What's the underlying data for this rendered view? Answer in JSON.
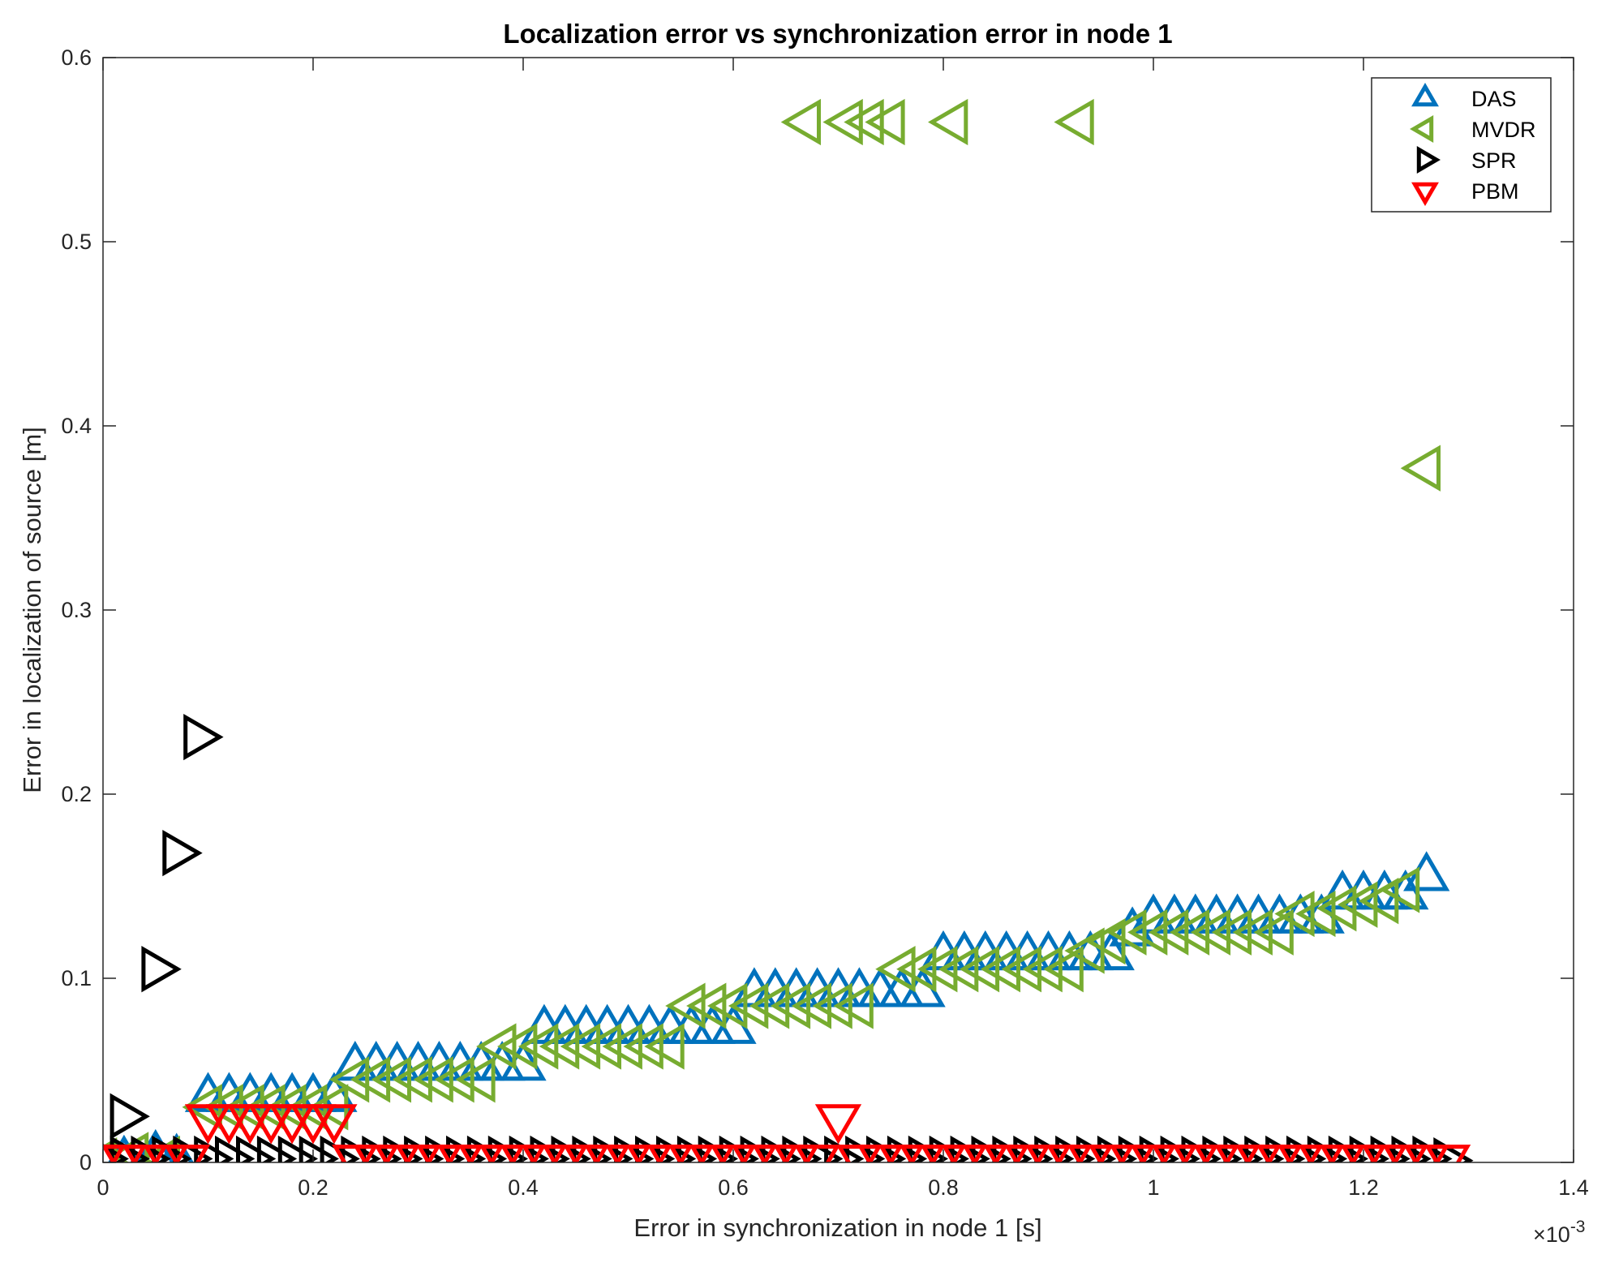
{
  "chart_data": {
    "type": "scatter",
    "title": "Localization error vs synchronization error in node 1",
    "xlabel": "Error in synchronization in node 1 [s]",
    "ylabel": "Error in localization of source [m]",
    "x_exponent_label": "×10",
    "x_exponent_power": "-3",
    "xlim": [
      0,
      1.4
    ],
    "ylim": [
      0,
      0.6
    ],
    "xticks": [
      0,
      0.2,
      0.4,
      0.6,
      0.8,
      1,
      1.2,
      1.4
    ],
    "xtick_labels": [
      "0",
      "0.2",
      "0.4",
      "0.6",
      "0.8",
      "1",
      "1.2",
      "1.4"
    ],
    "yticks": [
      0,
      0.1,
      0.2,
      0.3,
      0.4,
      0.5,
      0.6
    ],
    "ytick_labels": [
      "0",
      "0.1",
      "0.2",
      "0.3",
      "0.4",
      "0.5",
      "0.6"
    ],
    "grid": false,
    "legend_position": "top-right",
    "marker_size": 27,
    "series": [
      {
        "name": "DAS",
        "marker": "triangle-up",
        "color": "#0072BD",
        "points": [
          [
            0.02,
            0.001
          ],
          [
            0.05,
            0.004
          ],
          [
            0.07,
            0.002
          ],
          [
            0.1,
            0.035
          ],
          [
            0.12,
            0.035
          ],
          [
            0.14,
            0.035
          ],
          [
            0.16,
            0.035
          ],
          [
            0.18,
            0.035
          ],
          [
            0.2,
            0.035
          ],
          [
            0.22,
            0.035
          ],
          [
            0.24,
            0.052
          ],
          [
            0.26,
            0.052
          ],
          [
            0.28,
            0.052
          ],
          [
            0.3,
            0.052
          ],
          [
            0.32,
            0.052
          ],
          [
            0.34,
            0.052
          ],
          [
            0.36,
            0.052
          ],
          [
            0.38,
            0.052
          ],
          [
            0.4,
            0.052
          ],
          [
            0.42,
            0.072
          ],
          [
            0.44,
            0.072
          ],
          [
            0.46,
            0.072
          ],
          [
            0.48,
            0.072
          ],
          [
            0.5,
            0.072
          ],
          [
            0.52,
            0.072
          ],
          [
            0.54,
            0.072
          ],
          [
            0.56,
            0.072
          ],
          [
            0.58,
            0.072
          ],
          [
            0.6,
            0.072
          ],
          [
            0.62,
            0.092
          ],
          [
            0.64,
            0.092
          ],
          [
            0.66,
            0.092
          ],
          [
            0.68,
            0.092
          ],
          [
            0.7,
            0.092
          ],
          [
            0.72,
            0.092
          ],
          [
            0.74,
            0.092
          ],
          [
            0.76,
            0.092
          ],
          [
            0.78,
            0.092
          ],
          [
            0.8,
            0.112
          ],
          [
            0.82,
            0.112
          ],
          [
            0.84,
            0.112
          ],
          [
            0.86,
            0.112
          ],
          [
            0.88,
            0.112
          ],
          [
            0.9,
            0.112
          ],
          [
            0.92,
            0.112
          ],
          [
            0.94,
            0.112
          ],
          [
            0.96,
            0.112
          ],
          [
            0.98,
            0.125
          ],
          [
            1.0,
            0.132
          ],
          [
            1.02,
            0.132
          ],
          [
            1.04,
            0.132
          ],
          [
            1.06,
            0.132
          ],
          [
            1.08,
            0.132
          ],
          [
            1.1,
            0.132
          ],
          [
            1.12,
            0.132
          ],
          [
            1.14,
            0.132
          ],
          [
            1.16,
            0.132
          ],
          [
            1.18,
            0.145
          ],
          [
            1.2,
            0.145
          ],
          [
            1.22,
            0.145
          ],
          [
            1.24,
            0.145
          ],
          [
            1.26,
            0.155
          ]
        ]
      },
      {
        "name": "MVDR",
        "marker": "triangle-left",
        "color": "#77AC30",
        "points": [
          [
            0.0,
            0.001
          ],
          [
            0.03,
            0.004
          ],
          [
            0.06,
            0.002
          ],
          [
            0.1,
            0.03
          ],
          [
            0.12,
            0.03
          ],
          [
            0.14,
            0.03
          ],
          [
            0.16,
            0.03
          ],
          [
            0.18,
            0.03
          ],
          [
            0.2,
            0.03
          ],
          [
            0.22,
            0.03
          ],
          [
            0.24,
            0.045
          ],
          [
            0.26,
            0.045
          ],
          [
            0.28,
            0.045
          ],
          [
            0.3,
            0.045
          ],
          [
            0.32,
            0.045
          ],
          [
            0.34,
            0.045
          ],
          [
            0.36,
            0.045
          ],
          [
            0.38,
            0.063
          ],
          [
            0.4,
            0.063
          ],
          [
            0.42,
            0.063
          ],
          [
            0.44,
            0.063
          ],
          [
            0.46,
            0.063
          ],
          [
            0.48,
            0.063
          ],
          [
            0.5,
            0.063
          ],
          [
            0.52,
            0.063
          ],
          [
            0.54,
            0.063
          ],
          [
            0.56,
            0.085
          ],
          [
            0.58,
            0.085
          ],
          [
            0.6,
            0.085
          ],
          [
            0.62,
            0.085
          ],
          [
            0.64,
            0.085
          ],
          [
            0.66,
            0.085
          ],
          [
            0.68,
            0.085
          ],
          [
            0.7,
            0.085
          ],
          [
            0.72,
            0.085
          ],
          [
            0.76,
            0.105
          ],
          [
            0.78,
            0.105
          ],
          [
            0.8,
            0.105
          ],
          [
            0.82,
            0.105
          ],
          [
            0.84,
            0.105
          ],
          [
            0.86,
            0.105
          ],
          [
            0.88,
            0.105
          ],
          [
            0.9,
            0.105
          ],
          [
            0.92,
            0.105
          ],
          [
            0.94,
            0.115
          ],
          [
            0.96,
            0.12
          ],
          [
            0.98,
            0.125
          ],
          [
            1.0,
            0.125
          ],
          [
            1.02,
            0.125
          ],
          [
            1.04,
            0.125
          ],
          [
            1.06,
            0.125
          ],
          [
            1.08,
            0.125
          ],
          [
            1.1,
            0.125
          ],
          [
            1.12,
            0.125
          ],
          [
            1.14,
            0.135
          ],
          [
            1.16,
            0.135
          ],
          [
            1.18,
            0.138
          ],
          [
            1.2,
            0.14
          ],
          [
            1.22,
            0.142
          ],
          [
            1.24,
            0.148
          ],
          [
            0.67,
            0.565
          ],
          [
            0.71,
            0.565
          ],
          [
            0.73,
            0.565
          ],
          [
            0.75,
            0.565
          ],
          [
            0.81,
            0.565
          ],
          [
            0.93,
            0.565
          ],
          [
            1.26,
            0.377
          ]
        ]
      },
      {
        "name": "SPR",
        "marker": "triangle-right",
        "color": "#000000",
        "points": [
          [
            0.02,
            0.025
          ],
          [
            0.05,
            0.105
          ],
          [
            0.07,
            0.168
          ],
          [
            0.09,
            0.231
          ],
          [
            0.0,
            0.002
          ],
          [
            0.02,
            0.002
          ],
          [
            0.04,
            0.002
          ],
          [
            0.06,
            0.002
          ],
          [
            0.08,
            0.002
          ],
          [
            0.1,
            0.002
          ],
          [
            0.12,
            0.002
          ],
          [
            0.14,
            0.002
          ],
          [
            0.16,
            0.002
          ],
          [
            0.18,
            0.002
          ],
          [
            0.2,
            0.002
          ],
          [
            0.22,
            0.002
          ],
          [
            0.24,
            0.002
          ],
          [
            0.26,
            0.002
          ],
          [
            0.28,
            0.002
          ],
          [
            0.3,
            0.002
          ],
          [
            0.32,
            0.002
          ],
          [
            0.34,
            0.002
          ],
          [
            0.36,
            0.002
          ],
          [
            0.38,
            0.002
          ],
          [
            0.4,
            0.002
          ],
          [
            0.42,
            0.002
          ],
          [
            0.44,
            0.002
          ],
          [
            0.46,
            0.002
          ],
          [
            0.48,
            0.002
          ],
          [
            0.5,
            0.002
          ],
          [
            0.52,
            0.002
          ],
          [
            0.54,
            0.002
          ],
          [
            0.56,
            0.002
          ],
          [
            0.58,
            0.002
          ],
          [
            0.6,
            0.002
          ],
          [
            0.62,
            0.002
          ],
          [
            0.64,
            0.002
          ],
          [
            0.66,
            0.002
          ],
          [
            0.68,
            0.002
          ],
          [
            0.7,
            0.002
          ],
          [
            0.72,
            0.002
          ],
          [
            0.74,
            0.002
          ],
          [
            0.76,
            0.002
          ],
          [
            0.78,
            0.002
          ],
          [
            0.8,
            0.002
          ],
          [
            0.82,
            0.002
          ],
          [
            0.84,
            0.002
          ],
          [
            0.86,
            0.002
          ],
          [
            0.88,
            0.002
          ],
          [
            0.9,
            0.002
          ],
          [
            0.92,
            0.002
          ],
          [
            0.94,
            0.002
          ],
          [
            0.96,
            0.002
          ],
          [
            0.98,
            0.002
          ],
          [
            1.0,
            0.002
          ],
          [
            1.02,
            0.002
          ],
          [
            1.04,
            0.002
          ],
          [
            1.06,
            0.002
          ],
          [
            1.08,
            0.002
          ],
          [
            1.1,
            0.002
          ],
          [
            1.12,
            0.002
          ],
          [
            1.14,
            0.002
          ],
          [
            1.16,
            0.002
          ],
          [
            1.18,
            0.002
          ],
          [
            1.2,
            0.002
          ],
          [
            1.22,
            0.002
          ],
          [
            1.24,
            0.002
          ],
          [
            1.26,
            0.002
          ],
          [
            1.28,
            0.001
          ]
        ]
      },
      {
        "name": "PBM",
        "marker": "triangle-down",
        "color": "#FF0000",
        "points": [
          [
            0.0,
            0.002
          ],
          [
            0.02,
            0.002
          ],
          [
            0.04,
            0.002
          ],
          [
            0.06,
            0.002
          ],
          [
            0.08,
            0.002
          ],
          [
            0.1,
            0.024
          ],
          [
            0.12,
            0.024
          ],
          [
            0.14,
            0.024
          ],
          [
            0.16,
            0.024
          ],
          [
            0.18,
            0.024
          ],
          [
            0.2,
            0.024
          ],
          [
            0.22,
            0.024
          ],
          [
            0.24,
            0.002
          ],
          [
            0.26,
            0.002
          ],
          [
            0.28,
            0.002
          ],
          [
            0.3,
            0.002
          ],
          [
            0.32,
            0.002
          ],
          [
            0.34,
            0.002
          ],
          [
            0.36,
            0.002
          ],
          [
            0.38,
            0.002
          ],
          [
            0.4,
            0.002
          ],
          [
            0.42,
            0.002
          ],
          [
            0.44,
            0.002
          ],
          [
            0.46,
            0.002
          ],
          [
            0.48,
            0.002
          ],
          [
            0.5,
            0.002
          ],
          [
            0.52,
            0.002
          ],
          [
            0.54,
            0.002
          ],
          [
            0.56,
            0.002
          ],
          [
            0.58,
            0.002
          ],
          [
            0.6,
            0.002
          ],
          [
            0.62,
            0.002
          ],
          [
            0.64,
            0.002
          ],
          [
            0.66,
            0.002
          ],
          [
            0.68,
            0.002
          ],
          [
            0.7,
            0.024
          ],
          [
            0.72,
            0.002
          ],
          [
            0.74,
            0.002
          ],
          [
            0.76,
            0.002
          ],
          [
            0.78,
            0.002
          ],
          [
            0.8,
            0.002
          ],
          [
            0.82,
            0.002
          ],
          [
            0.84,
            0.002
          ],
          [
            0.86,
            0.002
          ],
          [
            0.88,
            0.002
          ],
          [
            0.9,
            0.002
          ],
          [
            0.92,
            0.002
          ],
          [
            0.94,
            0.002
          ],
          [
            0.96,
            0.002
          ],
          [
            0.98,
            0.002
          ],
          [
            1.0,
            0.002
          ],
          [
            1.02,
            0.002
          ],
          [
            1.04,
            0.002
          ],
          [
            1.06,
            0.002
          ],
          [
            1.08,
            0.002
          ],
          [
            1.1,
            0.002
          ],
          [
            1.12,
            0.002
          ],
          [
            1.14,
            0.002
          ],
          [
            1.16,
            0.002
          ],
          [
            1.18,
            0.002
          ],
          [
            1.2,
            0.002
          ],
          [
            1.22,
            0.002
          ],
          [
            1.24,
            0.002
          ],
          [
            1.26,
            0.002
          ],
          [
            1.28,
            0.002
          ]
        ]
      }
    ]
  }
}
